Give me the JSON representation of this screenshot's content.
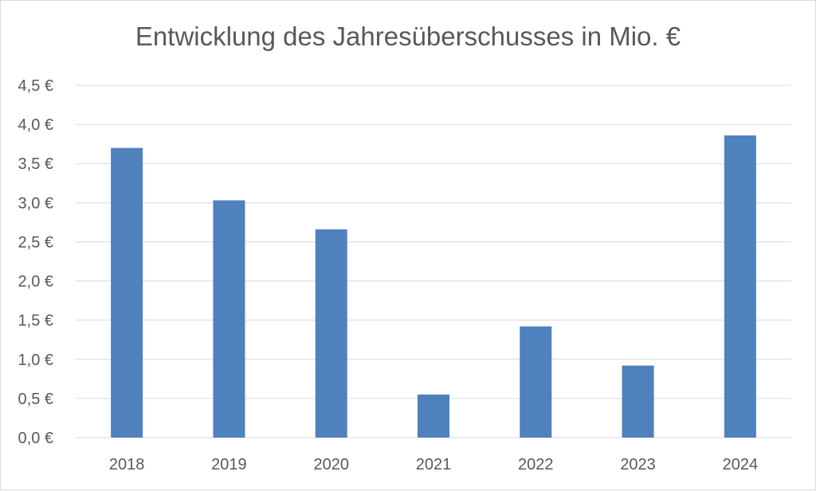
{
  "chart_data": {
    "type": "bar",
    "title": "Entwicklung des Jahresüberschusses in Mio. €",
    "xlabel": "",
    "ylabel": "",
    "categories": [
      "2018",
      "2019",
      "2020",
      "2021",
      "2022",
      "2023",
      "2024"
    ],
    "values": [
      3.7,
      3.03,
      2.66,
      0.55,
      1.42,
      0.92,
      3.86
    ],
    "ylim": [
      0,
      4.5
    ],
    "yticks": [
      0,
      0.5,
      1,
      1.5,
      2,
      2.5,
      3,
      3.5,
      4,
      4.5
    ],
    "ytick_labels": [
      "0,0 €",
      "0,5 €",
      "1,0 €",
      "1,5 €",
      "2,0 €",
      "2,5 €",
      "3,0 €",
      "3,5 €",
      "4,0 €",
      "4,5 €"
    ],
    "grid": true,
    "legend": "none",
    "colors": {
      "bar": "#4f81bd",
      "grid": "#d9d9d9",
      "text": "#595959"
    }
  }
}
